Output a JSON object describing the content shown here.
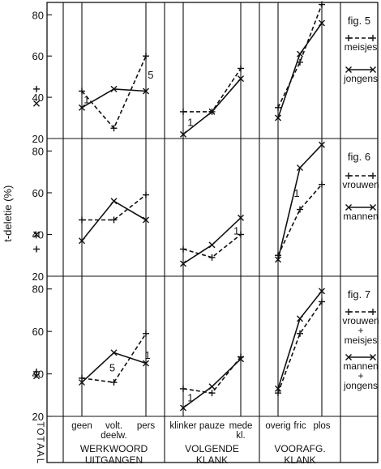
{
  "chart_data": {
    "type": "line",
    "ylabel": "t-deletie (%)",
    "ylim": [
      20,
      86
    ],
    "yticks": [
      20,
      40,
      60,
      80
    ],
    "total_label": "TOTAAL",
    "groups": [
      {
        "key": "werkwoord",
        "title_lines": [
          "WERKWOORD",
          "UITGANGEN"
        ],
        "categories": [
          "geen",
          "volt. deelw.",
          "pers"
        ],
        "category_lines": [
          [
            "geen"
          ],
          [
            "volt.",
            "deelw."
          ],
          [
            "pers"
          ]
        ]
      },
      {
        "key": "volgende",
        "title_lines": [
          "VOLGENDE",
          "KLANK"
        ],
        "categories": [
          "klinker",
          "pauze",
          "mede kl."
        ],
        "category_lines": [
          [
            "klinker"
          ],
          [
            "pauze"
          ],
          [
            "mede",
            "kl."
          ]
        ]
      },
      {
        "key": "vooraf",
        "title_lines": [
          "VOORAFG.",
          "KLANK"
        ],
        "categories": [
          "overig",
          "fric",
          "plos"
        ],
        "category_lines": [
          [
            "overig"
          ],
          [
            "fric"
          ],
          [
            "plos"
          ]
        ]
      }
    ],
    "panels": [
      {
        "figure": "fig. 5",
        "series": [
          {
            "name": "meisjes",
            "name_lines": [
              "meisjes"
            ],
            "style": "dashed",
            "marker": "plus",
            "total": 44,
            "werkwoord": [
              43,
              25,
              60
            ],
            "volgende": [
              33,
              33,
              54
            ],
            "vooraf": [
              35,
              57,
              85
            ]
          },
          {
            "name": "jongens",
            "name_lines": [
              "jongens"
            ],
            "style": "solid",
            "marker": "cross",
            "total": 37,
            "werkwoord": [
              35,
              44,
              43
            ],
            "volgende": [
              22,
              33,
              49
            ],
            "vooraf": [
              30,
              61,
              76
            ]
          }
        ],
        "annotations": [
          {
            "text": "1",
            "group": "werkwoord",
            "x": 0.15,
            "y": 39
          },
          {
            "text": "5",
            "group": "werkwoord",
            "x": 2.15,
            "y": 51
          },
          {
            "text": "1",
            "group": "volgende",
            "x": 0.25,
            "y": 28
          }
        ]
      },
      {
        "figure": "fig. 6",
        "series": [
          {
            "name": "vrouwen",
            "name_lines": [
              "vrouwen"
            ],
            "style": "dashed",
            "marker": "plus",
            "total": 33,
            "werkwoord": [
              47,
              47,
              59
            ],
            "volgende": [
              33,
              29,
              40
            ],
            "vooraf": [
              30,
              52,
              64
            ]
          },
          {
            "name": "mannen",
            "name_lines": [
              "mannen"
            ],
            "style": "solid",
            "marker": "cross",
            "total": 40,
            "werkwoord": [
              37,
              56,
              47
            ],
            "volgende": [
              26,
              35,
              48
            ],
            "vooraf": [
              28,
              72,
              83
            ]
          }
        ],
        "annotations": [
          {
            "text": "1",
            "group": "volgende",
            "x": 1.85,
            "y": 42
          },
          {
            "text": "1",
            "group": "vooraf",
            "x": 0.85,
            "y": 60
          }
        ]
      },
      {
        "figure": "fig. 7",
        "series": [
          {
            "name": "vrouwen + meisjes",
            "name_lines": [
              "vrouwen",
              "+",
              "meisjes"
            ],
            "style": "dashed",
            "marker": "plus",
            "total": 41,
            "werkwoord": [
              38,
              36,
              59
            ],
            "volgende": [
              33,
              31,
              48
            ],
            "vooraf": [
              31,
              59,
              74
            ]
          },
          {
            "name": "mannen + jongens",
            "name_lines": [
              "mannen",
              "+",
              "jongens"
            ],
            "style": "solid",
            "marker": "cross",
            "total": 39,
            "werkwoord": [
              36,
              50,
              45
            ],
            "volgende": [
              24,
              34,
              47
            ],
            "vooraf": [
              33,
              66,
              79
            ]
          }
        ],
        "annotations": [
          {
            "text": "5",
            "group": "werkwoord",
            "x": 0.95,
            "y": 43
          },
          {
            "text": "1",
            "group": "werkwoord",
            "x": 2.05,
            "y": 49
          },
          {
            "text": "1",
            "group": "volgende",
            "x": 0.25,
            "y": 29
          }
        ]
      }
    ]
  }
}
